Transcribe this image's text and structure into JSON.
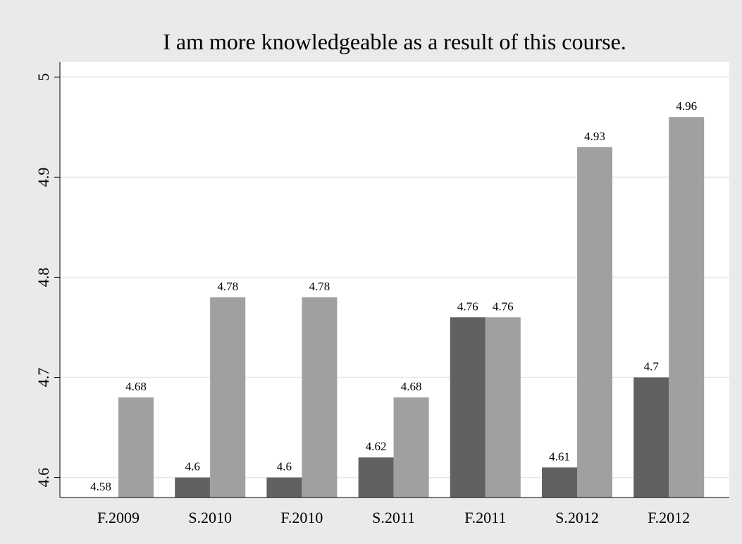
{
  "chart_data": {
    "type": "bar",
    "title": "I am more knowledgeable as a result of this course.",
    "categories": [
      "F.2009",
      "S.2010",
      "F.2010",
      "S.2011",
      "F.2011",
      "S.2012",
      "F.2012"
    ],
    "series": [
      {
        "color": "#616161",
        "values": [
          4.58,
          4.6,
          4.6,
          4.62,
          4.76,
          4.61,
          4.7
        ]
      },
      {
        "color": "#a0a0a0",
        "values": [
          4.68,
          4.78,
          4.78,
          4.68,
          4.76,
          4.93,
          4.96
        ]
      }
    ],
    "ylim": [
      4.58,
      5.015
    ],
    "yticks": [
      4.6,
      4.7,
      4.8,
      4.9,
      5
    ],
    "grid": true
  }
}
